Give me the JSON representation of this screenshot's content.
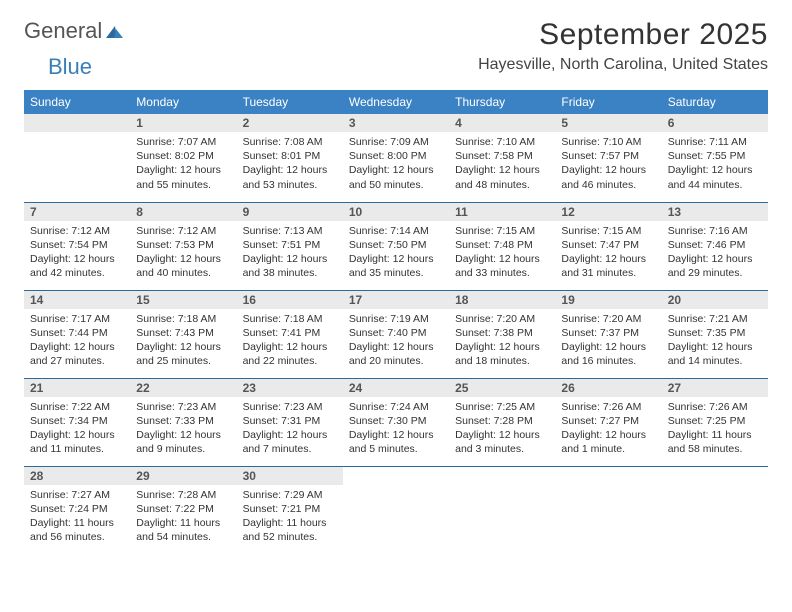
{
  "brand": {
    "word1": "General",
    "word2": "Blue"
  },
  "title": "September 2025",
  "location": "Hayesville, North Carolina, United States",
  "dayHeaders": [
    "Sunday",
    "Monday",
    "Tuesday",
    "Wednesday",
    "Thursday",
    "Friday",
    "Saturday"
  ],
  "colors": {
    "headerBg": "#3a82c4",
    "headerText": "#ffffff",
    "dayNumBg": "#eaeaea",
    "border": "#2a6aa0"
  },
  "weeks": [
    [
      null,
      {
        "n": "1",
        "sr": "Sunrise: 7:07 AM",
        "ss": "Sunset: 8:02 PM",
        "dl": "Daylight: 12 hours and 55 minutes."
      },
      {
        "n": "2",
        "sr": "Sunrise: 7:08 AM",
        "ss": "Sunset: 8:01 PM",
        "dl": "Daylight: 12 hours and 53 minutes."
      },
      {
        "n": "3",
        "sr": "Sunrise: 7:09 AM",
        "ss": "Sunset: 8:00 PM",
        "dl": "Daylight: 12 hours and 50 minutes."
      },
      {
        "n": "4",
        "sr": "Sunrise: 7:10 AM",
        "ss": "Sunset: 7:58 PM",
        "dl": "Daylight: 12 hours and 48 minutes."
      },
      {
        "n": "5",
        "sr": "Sunrise: 7:10 AM",
        "ss": "Sunset: 7:57 PM",
        "dl": "Daylight: 12 hours and 46 minutes."
      },
      {
        "n": "6",
        "sr": "Sunrise: 7:11 AM",
        "ss": "Sunset: 7:55 PM",
        "dl": "Daylight: 12 hours and 44 minutes."
      }
    ],
    [
      {
        "n": "7",
        "sr": "Sunrise: 7:12 AM",
        "ss": "Sunset: 7:54 PM",
        "dl": "Daylight: 12 hours and 42 minutes."
      },
      {
        "n": "8",
        "sr": "Sunrise: 7:12 AM",
        "ss": "Sunset: 7:53 PM",
        "dl": "Daylight: 12 hours and 40 minutes."
      },
      {
        "n": "9",
        "sr": "Sunrise: 7:13 AM",
        "ss": "Sunset: 7:51 PM",
        "dl": "Daylight: 12 hours and 38 minutes."
      },
      {
        "n": "10",
        "sr": "Sunrise: 7:14 AM",
        "ss": "Sunset: 7:50 PM",
        "dl": "Daylight: 12 hours and 35 minutes."
      },
      {
        "n": "11",
        "sr": "Sunrise: 7:15 AM",
        "ss": "Sunset: 7:48 PM",
        "dl": "Daylight: 12 hours and 33 minutes."
      },
      {
        "n": "12",
        "sr": "Sunrise: 7:15 AM",
        "ss": "Sunset: 7:47 PM",
        "dl": "Daylight: 12 hours and 31 minutes."
      },
      {
        "n": "13",
        "sr": "Sunrise: 7:16 AM",
        "ss": "Sunset: 7:46 PM",
        "dl": "Daylight: 12 hours and 29 minutes."
      }
    ],
    [
      {
        "n": "14",
        "sr": "Sunrise: 7:17 AM",
        "ss": "Sunset: 7:44 PM",
        "dl": "Daylight: 12 hours and 27 minutes."
      },
      {
        "n": "15",
        "sr": "Sunrise: 7:18 AM",
        "ss": "Sunset: 7:43 PM",
        "dl": "Daylight: 12 hours and 25 minutes."
      },
      {
        "n": "16",
        "sr": "Sunrise: 7:18 AM",
        "ss": "Sunset: 7:41 PM",
        "dl": "Daylight: 12 hours and 22 minutes."
      },
      {
        "n": "17",
        "sr": "Sunrise: 7:19 AM",
        "ss": "Sunset: 7:40 PM",
        "dl": "Daylight: 12 hours and 20 minutes."
      },
      {
        "n": "18",
        "sr": "Sunrise: 7:20 AM",
        "ss": "Sunset: 7:38 PM",
        "dl": "Daylight: 12 hours and 18 minutes."
      },
      {
        "n": "19",
        "sr": "Sunrise: 7:20 AM",
        "ss": "Sunset: 7:37 PM",
        "dl": "Daylight: 12 hours and 16 minutes."
      },
      {
        "n": "20",
        "sr": "Sunrise: 7:21 AM",
        "ss": "Sunset: 7:35 PM",
        "dl": "Daylight: 12 hours and 14 minutes."
      }
    ],
    [
      {
        "n": "21",
        "sr": "Sunrise: 7:22 AM",
        "ss": "Sunset: 7:34 PM",
        "dl": "Daylight: 12 hours and 11 minutes."
      },
      {
        "n": "22",
        "sr": "Sunrise: 7:23 AM",
        "ss": "Sunset: 7:33 PM",
        "dl": "Daylight: 12 hours and 9 minutes."
      },
      {
        "n": "23",
        "sr": "Sunrise: 7:23 AM",
        "ss": "Sunset: 7:31 PM",
        "dl": "Daylight: 12 hours and 7 minutes."
      },
      {
        "n": "24",
        "sr": "Sunrise: 7:24 AM",
        "ss": "Sunset: 7:30 PM",
        "dl": "Daylight: 12 hours and 5 minutes."
      },
      {
        "n": "25",
        "sr": "Sunrise: 7:25 AM",
        "ss": "Sunset: 7:28 PM",
        "dl": "Daylight: 12 hours and 3 minutes."
      },
      {
        "n": "26",
        "sr": "Sunrise: 7:26 AM",
        "ss": "Sunset: 7:27 PM",
        "dl": "Daylight: 12 hours and 1 minute."
      },
      {
        "n": "27",
        "sr": "Sunrise: 7:26 AM",
        "ss": "Sunset: 7:25 PM",
        "dl": "Daylight: 11 hours and 58 minutes."
      }
    ],
    [
      {
        "n": "28",
        "sr": "Sunrise: 7:27 AM",
        "ss": "Sunset: 7:24 PM",
        "dl": "Daylight: 11 hours and 56 minutes."
      },
      {
        "n": "29",
        "sr": "Sunrise: 7:28 AM",
        "ss": "Sunset: 7:22 PM",
        "dl": "Daylight: 11 hours and 54 minutes."
      },
      {
        "n": "30",
        "sr": "Sunrise: 7:29 AM",
        "ss": "Sunset: 7:21 PM",
        "dl": "Daylight: 11 hours and 52 minutes."
      },
      null,
      null,
      null,
      null
    ]
  ]
}
